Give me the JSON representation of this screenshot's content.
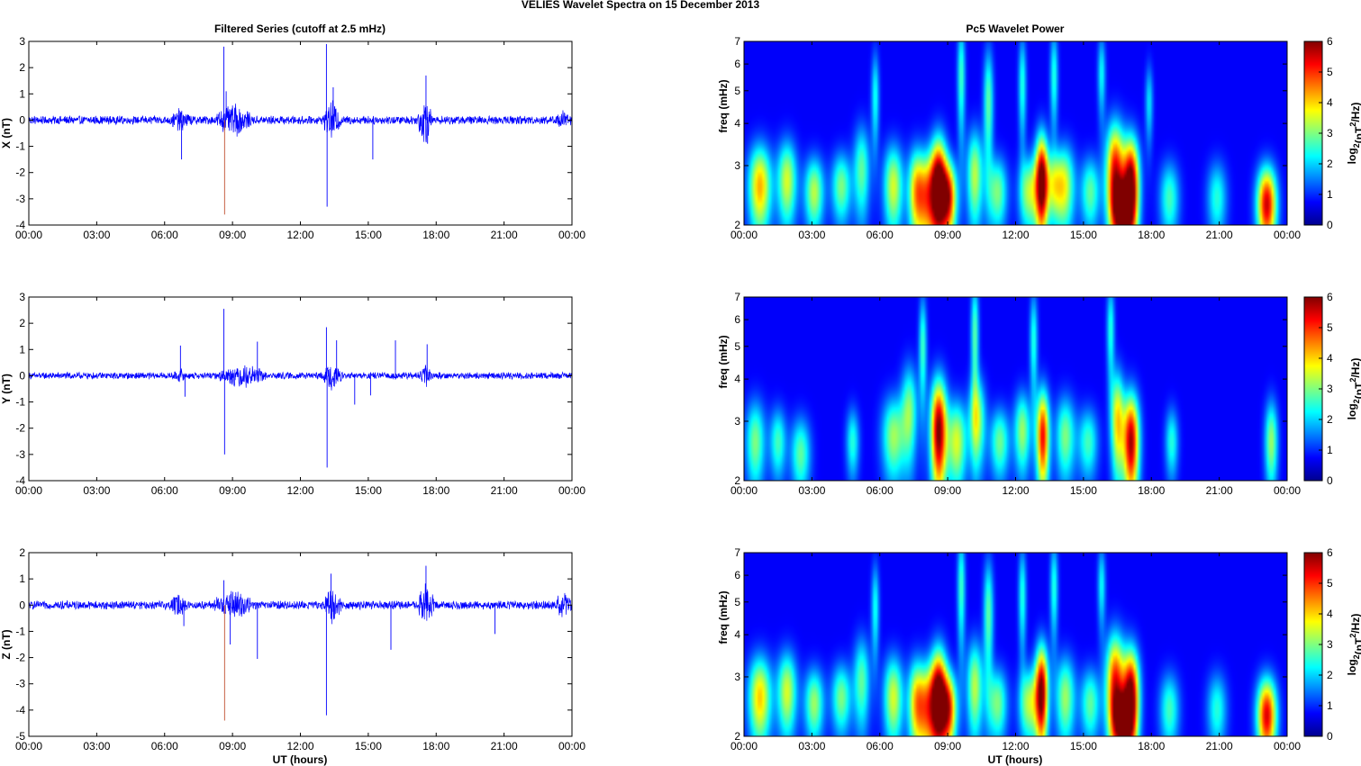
{
  "figure": {
    "suptitle": "VELIES Wavelet Spectra on 15 December  2013",
    "left_title": "Filtered Series (cutoff at 2.5 mHz)",
    "right_title": "Pc5 Wavelet Power",
    "xlabel": "UT (hours)",
    "freq_label": "freq (mHz)",
    "cb_label_main": "log",
    "cb_label_sub": "2",
    "cb_label_rest": "(nT",
    "cb_label_sup": "2",
    "cb_label_end": "/Hz)"
  },
  "time_ticks": [
    "00:00",
    "03:00",
    "06:00",
    "09:00",
    "12:00",
    "15:00",
    "18:00",
    "21:00",
    "00:00"
  ],
  "chart_data": [
    {
      "type": "line",
      "title": "Filtered Series (cutoff at 2.5 mHz)",
      "ylabel": "X (nT)",
      "xlim": [
        0,
        24
      ],
      "ylim": [
        -4,
        3
      ],
      "yticks": [
        "3",
        "2",
        "1",
        "0",
        "-1",
        "-2",
        "-3",
        "-4"
      ],
      "base_noise": 0.1,
      "bursts": [
        [
          6.2,
          7.2,
          0.3
        ],
        [
          8.3,
          9.8,
          0.45
        ],
        [
          13.0,
          13.8,
          0.5
        ],
        [
          17.2,
          17.8,
          0.6
        ],
        [
          23.2,
          24.0,
          0.25
        ]
      ],
      "spikes": [
        [
          6.75,
          -1.5
        ],
        [
          8.62,
          2.8
        ],
        [
          8.65,
          -3.6
        ],
        [
          8.72,
          1.1
        ],
        [
          13.15,
          2.9
        ],
        [
          13.18,
          -3.3
        ],
        [
          13.45,
          1.25
        ],
        [
          15.2,
          -1.5
        ],
        [
          17.55,
          1.7
        ],
        [
          17.62,
          -0.9
        ]
      ]
    },
    {
      "type": "line",
      "ylabel": "Y (nT)",
      "xlim": [
        0,
        24
      ],
      "ylim": [
        -4,
        3
      ],
      "yticks": [
        "3",
        "2",
        "1",
        "0",
        "-1",
        "-2",
        "-3",
        "-4"
      ],
      "base_noise": 0.08,
      "bursts": [
        [
          6.3,
          7.0,
          0.2
        ],
        [
          8.4,
          10.5,
          0.3
        ],
        [
          13.0,
          13.8,
          0.35
        ],
        [
          17.3,
          17.8,
          0.3
        ]
      ],
      "spikes": [
        [
          6.7,
          1.15
        ],
        [
          6.9,
          -0.8
        ],
        [
          8.62,
          2.55
        ],
        [
          8.65,
          -3.0
        ],
        [
          10.1,
          1.3
        ],
        [
          13.15,
          1.85
        ],
        [
          13.18,
          -3.5
        ],
        [
          13.6,
          1.35
        ],
        [
          14.4,
          -1.1
        ],
        [
          15.1,
          -0.75
        ],
        [
          16.2,
          1.35
        ],
        [
          17.6,
          1.2
        ]
      ]
    },
    {
      "type": "line",
      "ylabel": "Z (nT)",
      "xlim": [
        0,
        24
      ],
      "ylim": [
        -5,
        2
      ],
      "yticks": [
        "2",
        "1",
        "0",
        "-1",
        "-2",
        "-3",
        "-4",
        "-5"
      ],
      "base_noise": 0.1,
      "bursts": [
        [
          6.2,
          7.0,
          0.3
        ],
        [
          8.2,
          9.8,
          0.4
        ],
        [
          13.1,
          13.8,
          0.5
        ],
        [
          17.2,
          17.9,
          0.55
        ],
        [
          23.2,
          24.0,
          0.35
        ]
      ],
      "spikes": [
        [
          6.85,
          -0.8
        ],
        [
          8.62,
          0.95
        ],
        [
          8.65,
          -4.4
        ],
        [
          8.9,
          -1.5
        ],
        [
          10.1,
          -2.05
        ],
        [
          13.15,
          -4.2
        ],
        [
          13.35,
          1.2
        ],
        [
          16.0,
          -1.7
        ],
        [
          17.55,
          1.5
        ],
        [
          20.6,
          -1.1
        ]
      ]
    },
    {
      "type": "heatmap",
      "title": "Pc5 Wavelet Power",
      "ylabel": "freq (mHz)",
      "xlim": [
        0,
        24
      ],
      "ylim": [
        2,
        7
      ],
      "yscale": "log",
      "yticks": [
        "7",
        "6",
        "5",
        "4",
        "3",
        "2"
      ],
      "colorbar": {
        "label": "log2(nT^2/Hz)",
        "range": [
          0,
          6
        ],
        "ticks": [
          "6",
          "5",
          "4",
          "3",
          "2",
          "1",
          "0"
        ]
      },
      "blobs": [
        [
          8.6,
          2.6,
          0.25,
          0.3,
          6.2
        ],
        [
          9.05,
          2.4,
          0.25,
          0.2,
          4.8
        ],
        [
          8.1,
          2.4,
          0.3,
          0.25,
          3.8
        ],
        [
          7.6,
          2.5,
          0.25,
          0.25,
          3.5
        ],
        [
          13.15,
          2.7,
          0.2,
          0.3,
          6.0
        ],
        [
          12.6,
          2.5,
          0.3,
          0.2,
          3.0
        ],
        [
          13.7,
          2.6,
          0.3,
          0.2,
          2.6
        ],
        [
          16.4,
          2.8,
          0.28,
          0.35,
          5.4
        ],
        [
          17.1,
          2.6,
          0.25,
          0.3,
          6.4
        ],
        [
          16.7,
          2.2,
          0.3,
          0.15,
          4.0
        ],
        [
          23.1,
          2.3,
          0.3,
          0.2,
          5.5
        ],
        [
          0.7,
          2.6,
          0.35,
          0.25,
          4.0
        ],
        [
          1.9,
          2.7,
          0.3,
          0.25,
          3.2
        ],
        [
          3.1,
          2.5,
          0.3,
          0.2,
          3.0
        ],
        [
          4.3,
          2.6,
          0.3,
          0.2,
          2.6
        ],
        [
          5.2,
          2.9,
          0.25,
          0.3,
          2.4
        ],
        [
          6.6,
          2.6,
          0.3,
          0.25,
          3.2
        ],
        [
          10.2,
          2.8,
          0.25,
          0.3,
          3.0
        ],
        [
          11.2,
          2.5,
          0.3,
          0.2,
          2.6
        ],
        [
          14.2,
          2.6,
          0.3,
          0.25,
          2.8
        ],
        [
          15.3,
          2.5,
          0.3,
          0.2,
          2.4
        ],
        [
          18.8,
          2.4,
          0.3,
          0.2,
          2.2
        ],
        [
          20.9,
          2.4,
          0.3,
          0.2,
          2.0
        ],
        [
          10.8,
          4.6,
          0.15,
          0.6,
          2.4
        ],
        [
          5.8,
          4.8,
          0.12,
          0.5,
          1.9
        ],
        [
          13.7,
          5.5,
          0.12,
          0.6,
          2.0
        ],
        [
          15.8,
          5.6,
          0.12,
          0.5,
          1.8
        ],
        [
          17.9,
          4.6,
          0.12,
          0.4,
          1.6
        ],
        [
          9.6,
          5.5,
          0.12,
          0.7,
          2.2
        ],
        [
          12.3,
          5.2,
          0.12,
          0.6,
          2.0
        ]
      ]
    },
    {
      "type": "heatmap",
      "ylabel": "freq (mHz)",
      "xlim": [
        0,
        24
      ],
      "ylim": [
        2,
        7
      ],
      "yscale": "log",
      "yticks": [
        "7",
        "6",
        "5",
        "4",
        "3",
        "2"
      ],
      "colorbar": {
        "label": "log2(nT^2/Hz)",
        "range": [
          0,
          6
        ],
        "ticks": [
          "6",
          "5",
          "4",
          "3",
          "2",
          "1",
          "0"
        ]
      },
      "blobs": [
        [
          8.6,
          2.8,
          0.25,
          0.35,
          6.1
        ],
        [
          13.2,
          2.7,
          0.2,
          0.3,
          5.2
        ],
        [
          17.1,
          2.6,
          0.25,
          0.3,
          5.8
        ],
        [
          16.5,
          3.0,
          0.2,
          0.35,
          3.6
        ],
        [
          23.3,
          2.6,
          0.2,
          0.25,
          2.8
        ],
        [
          0.5,
          2.6,
          0.3,
          0.25,
          2.6
        ],
        [
          1.5,
          2.6,
          0.25,
          0.2,
          2.2
        ],
        [
          2.5,
          2.4,
          0.3,
          0.2,
          2.4
        ],
        [
          4.8,
          2.6,
          0.2,
          0.2,
          2.0
        ],
        [
          6.6,
          2.7,
          0.35,
          0.25,
          2.8
        ],
        [
          7.3,
          3.2,
          0.25,
          0.35,
          2.6
        ],
        [
          9.4,
          2.6,
          0.3,
          0.25,
          3.2
        ],
        [
          10.3,
          3.0,
          0.25,
          0.3,
          3.0
        ],
        [
          11.3,
          2.6,
          0.3,
          0.2,
          2.5
        ],
        [
          12.3,
          2.8,
          0.25,
          0.25,
          2.8
        ],
        [
          14.2,
          2.7,
          0.3,
          0.25,
          2.6
        ],
        [
          15.2,
          2.6,
          0.3,
          0.2,
          2.2
        ],
        [
          18.9,
          2.6,
          0.2,
          0.2,
          2.0
        ],
        [
          10.2,
          5.4,
          0.12,
          0.7,
          2.4
        ],
        [
          7.9,
          5.0,
          0.12,
          0.6,
          2.2
        ],
        [
          12.8,
          5.2,
          0.12,
          0.6,
          2.0
        ],
        [
          16.2,
          5.6,
          0.12,
          0.6,
          2.0
        ]
      ]
    },
    {
      "type": "heatmap",
      "ylabel": "freq (mHz)",
      "xlim": [
        0,
        24
      ],
      "ylim": [
        2,
        7
      ],
      "yscale": "log",
      "yticks": [
        "7",
        "6",
        "5",
        "4",
        "3",
        "2"
      ],
      "colorbar": {
        "label": "log2(nT^2/Hz)",
        "range": [
          0,
          6
        ],
        "ticks": [
          "6",
          "5",
          "4",
          "3",
          "2",
          "1",
          "0"
        ]
      },
      "blobs": [
        [
          8.6,
          2.6,
          0.25,
          0.3,
          6.2
        ],
        [
          9.05,
          2.4,
          0.25,
          0.2,
          4.6
        ],
        [
          8.1,
          2.4,
          0.3,
          0.25,
          3.8
        ],
        [
          7.6,
          2.5,
          0.25,
          0.25,
          3.4
        ],
        [
          13.15,
          2.7,
          0.2,
          0.3,
          6.0
        ],
        [
          12.6,
          2.5,
          0.3,
          0.2,
          3.0
        ],
        [
          16.4,
          2.8,
          0.28,
          0.35,
          5.2
        ],
        [
          17.1,
          2.6,
          0.25,
          0.3,
          6.3
        ],
        [
          16.7,
          2.2,
          0.3,
          0.15,
          3.8
        ],
        [
          23.1,
          2.3,
          0.3,
          0.2,
          5.4
        ],
        [
          0.7,
          2.6,
          0.35,
          0.25,
          3.8
        ],
        [
          1.9,
          2.7,
          0.3,
          0.25,
          3.2
        ],
        [
          3.1,
          2.5,
          0.3,
          0.2,
          2.8
        ],
        [
          4.3,
          2.6,
          0.3,
          0.2,
          2.6
        ],
        [
          5.2,
          2.9,
          0.25,
          0.3,
          2.4
        ],
        [
          6.6,
          2.6,
          0.3,
          0.25,
          3.2
        ],
        [
          10.2,
          2.8,
          0.25,
          0.3,
          3.0
        ],
        [
          11.2,
          2.5,
          0.3,
          0.2,
          2.6
        ],
        [
          14.2,
          2.6,
          0.3,
          0.25,
          2.8
        ],
        [
          15.3,
          2.5,
          0.3,
          0.2,
          2.4
        ],
        [
          18.8,
          2.4,
          0.3,
          0.2,
          2.2
        ],
        [
          20.9,
          2.4,
          0.3,
          0.2,
          2.0
        ],
        [
          10.8,
          4.6,
          0.15,
          0.6,
          2.4
        ],
        [
          5.8,
          4.8,
          0.12,
          0.5,
          1.9
        ],
        [
          13.7,
          5.5,
          0.12,
          0.6,
          2.0
        ],
        [
          15.8,
          5.6,
          0.12,
          0.5,
          1.8
        ],
        [
          9.6,
          5.5,
          0.12,
          0.7,
          2.2
        ],
        [
          12.3,
          5.2,
          0.12,
          0.6,
          2.0
        ]
      ]
    }
  ]
}
